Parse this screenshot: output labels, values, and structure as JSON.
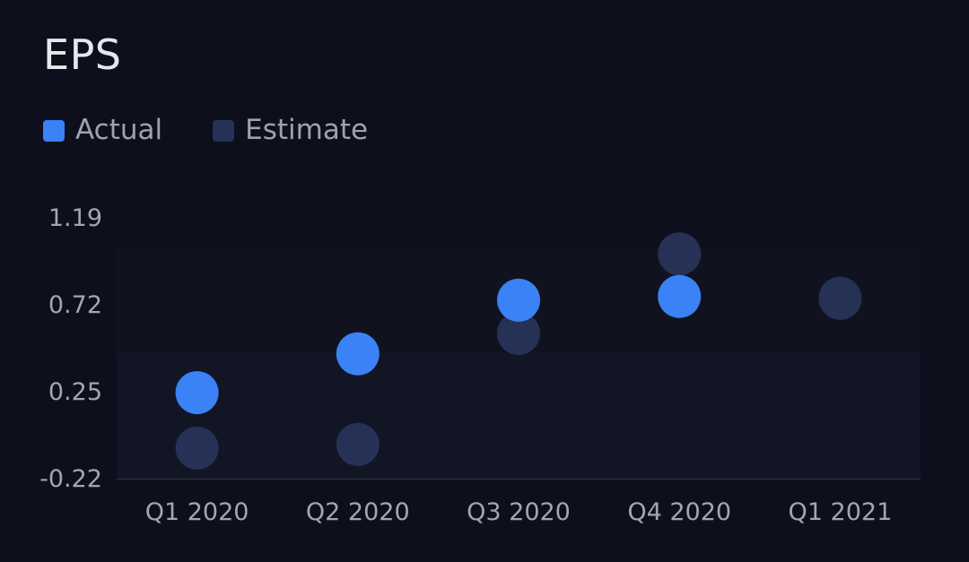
{
  "colors": {
    "background": "#0d0f1c",
    "actual": "#3b82f6",
    "estimate": "#253255",
    "text": "#a2a5b4",
    "title": "#e6e7ec"
  },
  "chart_data": {
    "type": "scatter",
    "title": "EPS",
    "xlabel": "",
    "ylabel": "",
    "categories": [
      "Q1 2020",
      "Q2 2020",
      "Q3 2020",
      "Q4 2020",
      "Q1 2021"
    ],
    "y_ticks": [
      "1.19",
      "0.72",
      "0.25",
      "-0.22"
    ],
    "ylim": [
      -0.22,
      1.19
    ],
    "legend_position": "top-left",
    "grid": false,
    "series": [
      {
        "name": "Actual",
        "color": "#3b82f6",
        "values": [
          0.24,
          0.45,
          0.74,
          0.76
        ]
      },
      {
        "name": "Estimate",
        "color": "#253255",
        "values": [
          -0.06,
          -0.04,
          0.56,
          0.99,
          0.75
        ]
      }
    ]
  }
}
